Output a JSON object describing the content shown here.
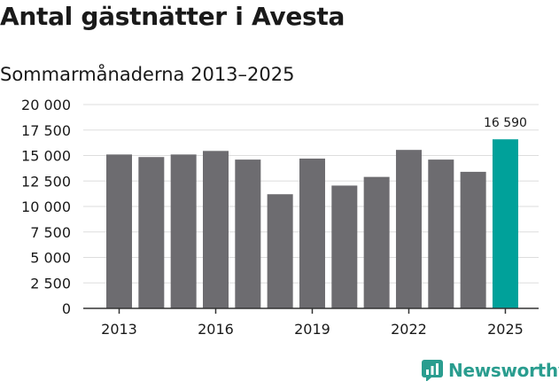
{
  "header": {
    "title": "Antal gästnätter i Avesta",
    "subtitle": "Sommarmånaderna 2013–2025"
  },
  "brand": {
    "name": "Newsworthy",
    "icon": "newsworthy-logo-icon",
    "color": "#2a9d8f"
  },
  "chart_data": {
    "type": "bar",
    "categories": [
      "2013",
      "2014",
      "2015",
      "2016",
      "2017",
      "2018",
      "2019",
      "2020",
      "2021",
      "2022",
      "2023",
      "2024",
      "2025"
    ],
    "values": [
      15100,
      14850,
      15100,
      15450,
      14600,
      11200,
      14700,
      12050,
      12900,
      15550,
      14600,
      13400,
      16590
    ],
    "x_tick_labels": [
      "2013",
      "2016",
      "2019",
      "2022",
      "2025"
    ],
    "y_tick_labels": [
      "0",
      "2 500",
      "5 000",
      "7 500",
      "10 000",
      "12 500",
      "15 000",
      "17 500",
      "20 000"
    ],
    "ylim": [
      0,
      20000
    ],
    "highlight_index": 12,
    "highlight_label": "16 590",
    "colors": {
      "bar": "#6d6c70",
      "highlight": "#00a19a",
      "grid": "#dddddd",
      "axis": "#333333"
    },
    "grid": true
  }
}
